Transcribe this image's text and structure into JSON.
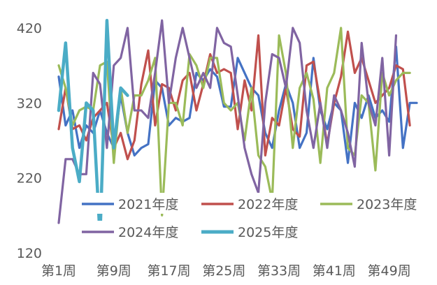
{
  "chart_data": {
    "type": "line",
    "title": "",
    "xlabel": "",
    "ylabel": "",
    "ylim": [
      120,
      420
    ],
    "yticks": [
      120,
      220,
      320,
      420
    ],
    "xlim": [
      1,
      53
    ],
    "x_tick_labels": [
      {
        "week": 1,
        "label": "第1周"
      },
      {
        "week": 9,
        "label": "第9周"
      },
      {
        "week": 17,
        "label": "第17周"
      },
      {
        "week": 25,
        "label": "第25周"
      },
      {
        "week": 33,
        "label": "第33周"
      },
      {
        "week": 41,
        "label": "第41周"
      },
      {
        "week": 49,
        "label": "第49周"
      }
    ],
    "grid": false,
    "legend_placement": "bottom-center",
    "series": [
      {
        "name": "2021年度",
        "color": "#4472c4",
        "values": [
          355,
          290,
          310,
          260,
          290,
          280,
          310,
          280,
          260,
          330,
          280,
          250,
          260,
          265,
          350,
          340,
          290,
          300,
          295,
          300,
          360,
          350,
          365,
          355,
          315,
          315,
          380,
          360,
          340,
          330,
          280,
          260,
          310,
          345,
          320,
          260,
          280,
          380,
          310,
          285,
          320,
          310,
          240,
          320,
          300,
          330,
          300,
          310,
          295,
          395,
          260,
          320,
          320
        ]
      },
      {
        "name": "2022年度",
        "color": "#c0504d",
        "values": [
          285,
          340,
          285,
          290,
          270,
          300,
          310,
          320,
          260,
          280,
          245,
          270,
          345,
          390,
          290,
          345,
          340,
          310,
          350,
          360,
          310,
          345,
          385,
          360,
          365,
          360,
          285,
          350,
          310,
          410,
          250,
          300,
          290,
          340,
          285,
          275,
          370,
          375,
          320,
          265,
          320,
          355,
          415,
          360,
          380,
          350,
          320,
          330,
          340,
          370,
          365,
          290,
          null
        ]
      },
      {
        "name": "2023年度",
        "color": "#9bbb59",
        "values": [
          370,
          340,
          290,
          310,
          315,
          310,
          370,
          375,
          240,
          340,
          280,
          330,
          330,
          350,
          380,
          170,
          320,
          320,
          290,
          385,
          370,
          340,
          380,
          380,
          320,
          310,
          320,
          270,
          340,
          250,
          235,
          190,
          410,
          360,
          260,
          340,
          360,
          325,
          240,
          340,
          360,
          420,
          260,
          250,
          330,
          320,
          230,
          360,
          330,
          350,
          360,
          360,
          null
        ]
      },
      {
        "name": "2024年度",
        "color": "#8064a2",
        "values": [
          160,
          245,
          245,
          225,
          225,
          360,
          345,
          260,
          370,
          380,
          420,
          310,
          310,
          300,
          360,
          430,
          320,
          380,
          420,
          380,
          340,
          360,
          340,
          420,
          400,
          395,
          330,
          260,
          225,
          200,
          320,
          385,
          380,
          340,
          420,
          400,
          310,
          260,
          320,
          260,
          330,
          310,
          280,
          235,
          400,
          320,
          290,
          380,
          250,
          410,
          null,
          null,
          null
        ]
      },
      {
        "name": "2025年度",
        "color": "#4bacc6",
        "values": [
          310,
          400,
          260,
          215,
          320,
          310,
          140,
          430,
          260,
          340,
          330,
          null,
          null,
          null,
          null,
          null,
          null,
          null,
          null,
          null,
          null,
          null,
          null,
          null,
          null,
          null,
          null,
          null,
          null,
          null,
          null,
          null,
          null,
          null,
          null,
          null,
          null,
          null,
          null,
          null,
          null,
          null,
          null,
          null,
          null,
          null,
          null,
          null,
          null,
          null,
          null,
          null,
          null
        ]
      }
    ]
  }
}
